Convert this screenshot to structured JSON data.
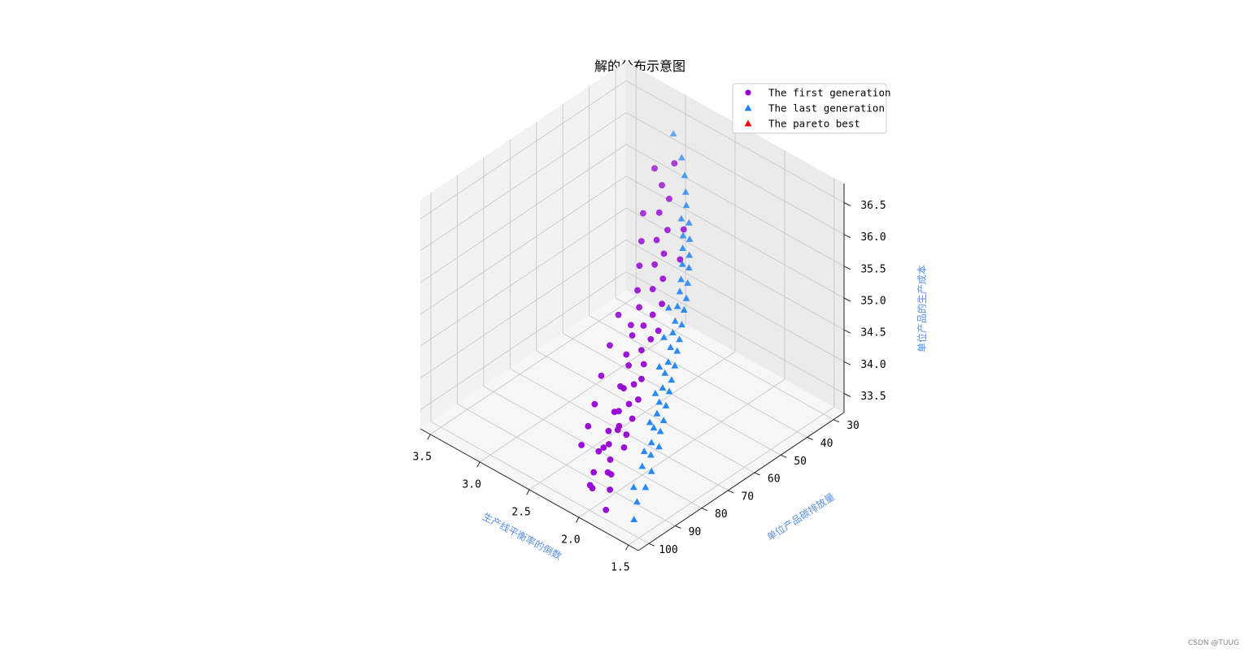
{
  "chart_data": {
    "type": "scatter",
    "title": "解的分布示意图",
    "xlabel": "生产线平衡率的倒数",
    "ylabel": "单位产品碳排放量",
    "zlabel": "单位产品的生产成本",
    "x_ticks": [
      "3.5",
      "3.0",
      "2.5",
      "2.0",
      "1.5"
    ],
    "y_ticks": [
      "30",
      "40",
      "50",
      "60",
      "70",
      "80",
      "90",
      "100"
    ],
    "z_ticks": [
      "33.5",
      "34.0",
      "34.5",
      "35.0",
      "35.5",
      "36.0",
      "36.5"
    ],
    "xlim": [
      1.4,
      3.6
    ],
    "ylim": [
      26,
      104
    ],
    "zlim": [
      33.2,
      36.8
    ],
    "grid": true,
    "legend_position": "top-right",
    "series": [
      {
        "name": "The first generation",
        "marker": "circle",
        "color": "#9400d3",
        "points": [
          [
            2.05,
            97,
            33.42
          ],
          [
            2.02,
            99,
            33.55
          ],
          [
            2.09,
            95,
            33.58
          ],
          [
            2.0,
            93,
            33.6
          ],
          [
            2.03,
            91,
            33.72
          ],
          [
            2.12,
            92,
            33.8
          ],
          [
            1.97,
            88,
            33.88
          ],
          [
            2.07,
            90,
            33.9
          ],
          [
            2.15,
            89,
            33.75
          ],
          [
            2.0,
            86,
            34.0
          ],
          [
            2.06,
            87,
            34.05
          ],
          [
            2.1,
            85,
            34.02
          ],
          [
            2.18,
            86,
            33.9
          ],
          [
            2.02,
            83,
            34.15
          ],
          [
            2.13,
            84,
            34.2
          ],
          [
            2.08,
            82,
            34.3
          ],
          [
            2.2,
            83,
            34.1
          ],
          [
            2.04,
            80,
            34.35
          ],
          [
            2.16,
            81,
            34.45
          ],
          [
            2.11,
            79,
            34.5
          ],
          [
            2.22,
            80,
            34.4
          ],
          [
            2.06,
            78,
            34.6
          ],
          [
            2.19,
            78,
            34.7
          ],
          [
            2.09,
            76,
            34.75
          ],
          [
            2.24,
            77,
            34.8
          ],
          [
            2.14,
            75,
            34.9
          ],
          [
            2.26,
            74,
            35.0
          ],
          [
            2.1,
            73,
            35.05
          ],
          [
            2.2,
            72,
            35.15
          ],
          [
            2.3,
            73,
            35.1
          ],
          [
            2.16,
            70,
            35.3
          ],
          [
            2.27,
            71,
            35.35
          ],
          [
            2.12,
            68,
            35.45
          ],
          [
            2.24,
            67,
            35.55
          ],
          [
            2.34,
            69,
            35.5
          ],
          [
            2.19,
            65,
            35.7
          ],
          [
            2.3,
            64,
            35.8
          ],
          [
            2.4,
            66,
            35.75
          ],
          [
            2.26,
            62,
            35.95
          ],
          [
            2.36,
            61,
            36.05
          ],
          [
            2.46,
            63,
            36.0
          ],
          [
            2.33,
            58,
            36.15
          ],
          [
            2.44,
            57,
            36.3
          ],
          [
            2.55,
            59,
            36.25
          ],
          [
            2.42,
            54,
            36.45
          ],
          [
            2.52,
            53,
            36.55
          ],
          [
            2.62,
            52,
            36.7
          ],
          [
            2.5,
            49,
            36.8
          ],
          [
            1.86,
            99,
            33.3
          ],
          [
            1.9,
            96,
            33.5
          ],
          [
            1.94,
            94,
            33.65
          ],
          [
            2.24,
            94,
            33.85
          ],
          [
            2.28,
            90,
            34.0
          ],
          [
            2.32,
            86,
            34.2
          ],
          [
            2.36,
            82,
            34.5
          ],
          [
            2.38,
            78,
            34.85
          ],
          [
            2.4,
            74,
            35.2
          ],
          [
            2.05,
            72,
            35.2
          ],
          [
            2.15,
            60,
            35.9
          ],
          [
            2.22,
            56,
            36.2
          ]
        ]
      },
      {
        "name": "The last generation",
        "marker": "triangle",
        "color": "#1e82f0",
        "points": [
          [
            1.55,
            100,
            33.45
          ],
          [
            1.6,
            97,
            33.6
          ],
          [
            1.62,
            93,
            33.7
          ],
          [
            1.66,
            96,
            33.75
          ],
          [
            1.64,
            90,
            33.85
          ],
          [
            1.68,
            92,
            33.95
          ],
          [
            1.7,
            88,
            34.0
          ],
          [
            1.67,
            86,
            34.1
          ],
          [
            1.72,
            87,
            34.15
          ],
          [
            1.71,
            84,
            34.25
          ],
          [
            1.75,
            85,
            34.3
          ],
          [
            1.73,
            82,
            34.35
          ],
          [
            1.77,
            83,
            34.45
          ],
          [
            1.76,
            80,
            34.5
          ],
          [
            1.8,
            81,
            34.55
          ],
          [
            1.78,
            78,
            34.65
          ],
          [
            1.82,
            79,
            34.7
          ],
          [
            1.81,
            76,
            34.75
          ],
          [
            1.85,
            77,
            34.85
          ],
          [
            1.83,
            74,
            34.9
          ],
          [
            1.87,
            75,
            34.95
          ],
          [
            1.86,
            72,
            35.05
          ],
          [
            1.9,
            73,
            35.1
          ],
          [
            1.89,
            70,
            35.15
          ],
          [
            1.93,
            71,
            35.25
          ],
          [
            1.92,
            68,
            35.3
          ],
          [
            1.96,
            69,
            35.35
          ],
          [
            1.95,
            66,
            35.45
          ],
          [
            1.99,
            67,
            35.5
          ],
          [
            1.98,
            64,
            35.55
          ],
          [
            2.02,
            65,
            35.65
          ],
          [
            2.02,
            62,
            35.7
          ],
          [
            2.06,
            63,
            35.75
          ],
          [
            2.06,
            60,
            35.85
          ],
          [
            2.1,
            61,
            35.9
          ],
          [
            2.11,
            58,
            35.95
          ],
          [
            2.15,
            59,
            36.05
          ],
          [
            2.16,
            56,
            36.1
          ],
          [
            2.2,
            57,
            36.15
          ],
          [
            2.22,
            54,
            36.25
          ],
          [
            2.27,
            55,
            36.3
          ],
          [
            2.3,
            52,
            36.4
          ],
          [
            2.36,
            50,
            36.5
          ],
          [
            2.45,
            47,
            36.6
          ],
          [
            2.56,
            44,
            36.7
          ],
          [
            2.75,
            40,
            36.8
          ],
          [
            1.74,
            89,
            34.05
          ],
          [
            1.79,
            85,
            34.35
          ],
          [
            1.84,
            81,
            34.65
          ],
          [
            1.88,
            78,
            34.95
          ],
          [
            1.94,
            74,
            35.25
          ],
          [
            2.0,
            70,
            35.55
          ]
        ]
      },
      {
        "name": "The pareto best",
        "marker": "triangle",
        "color": "#ff0000",
        "points": []
      }
    ]
  },
  "watermark": "CSDN @TUUG"
}
